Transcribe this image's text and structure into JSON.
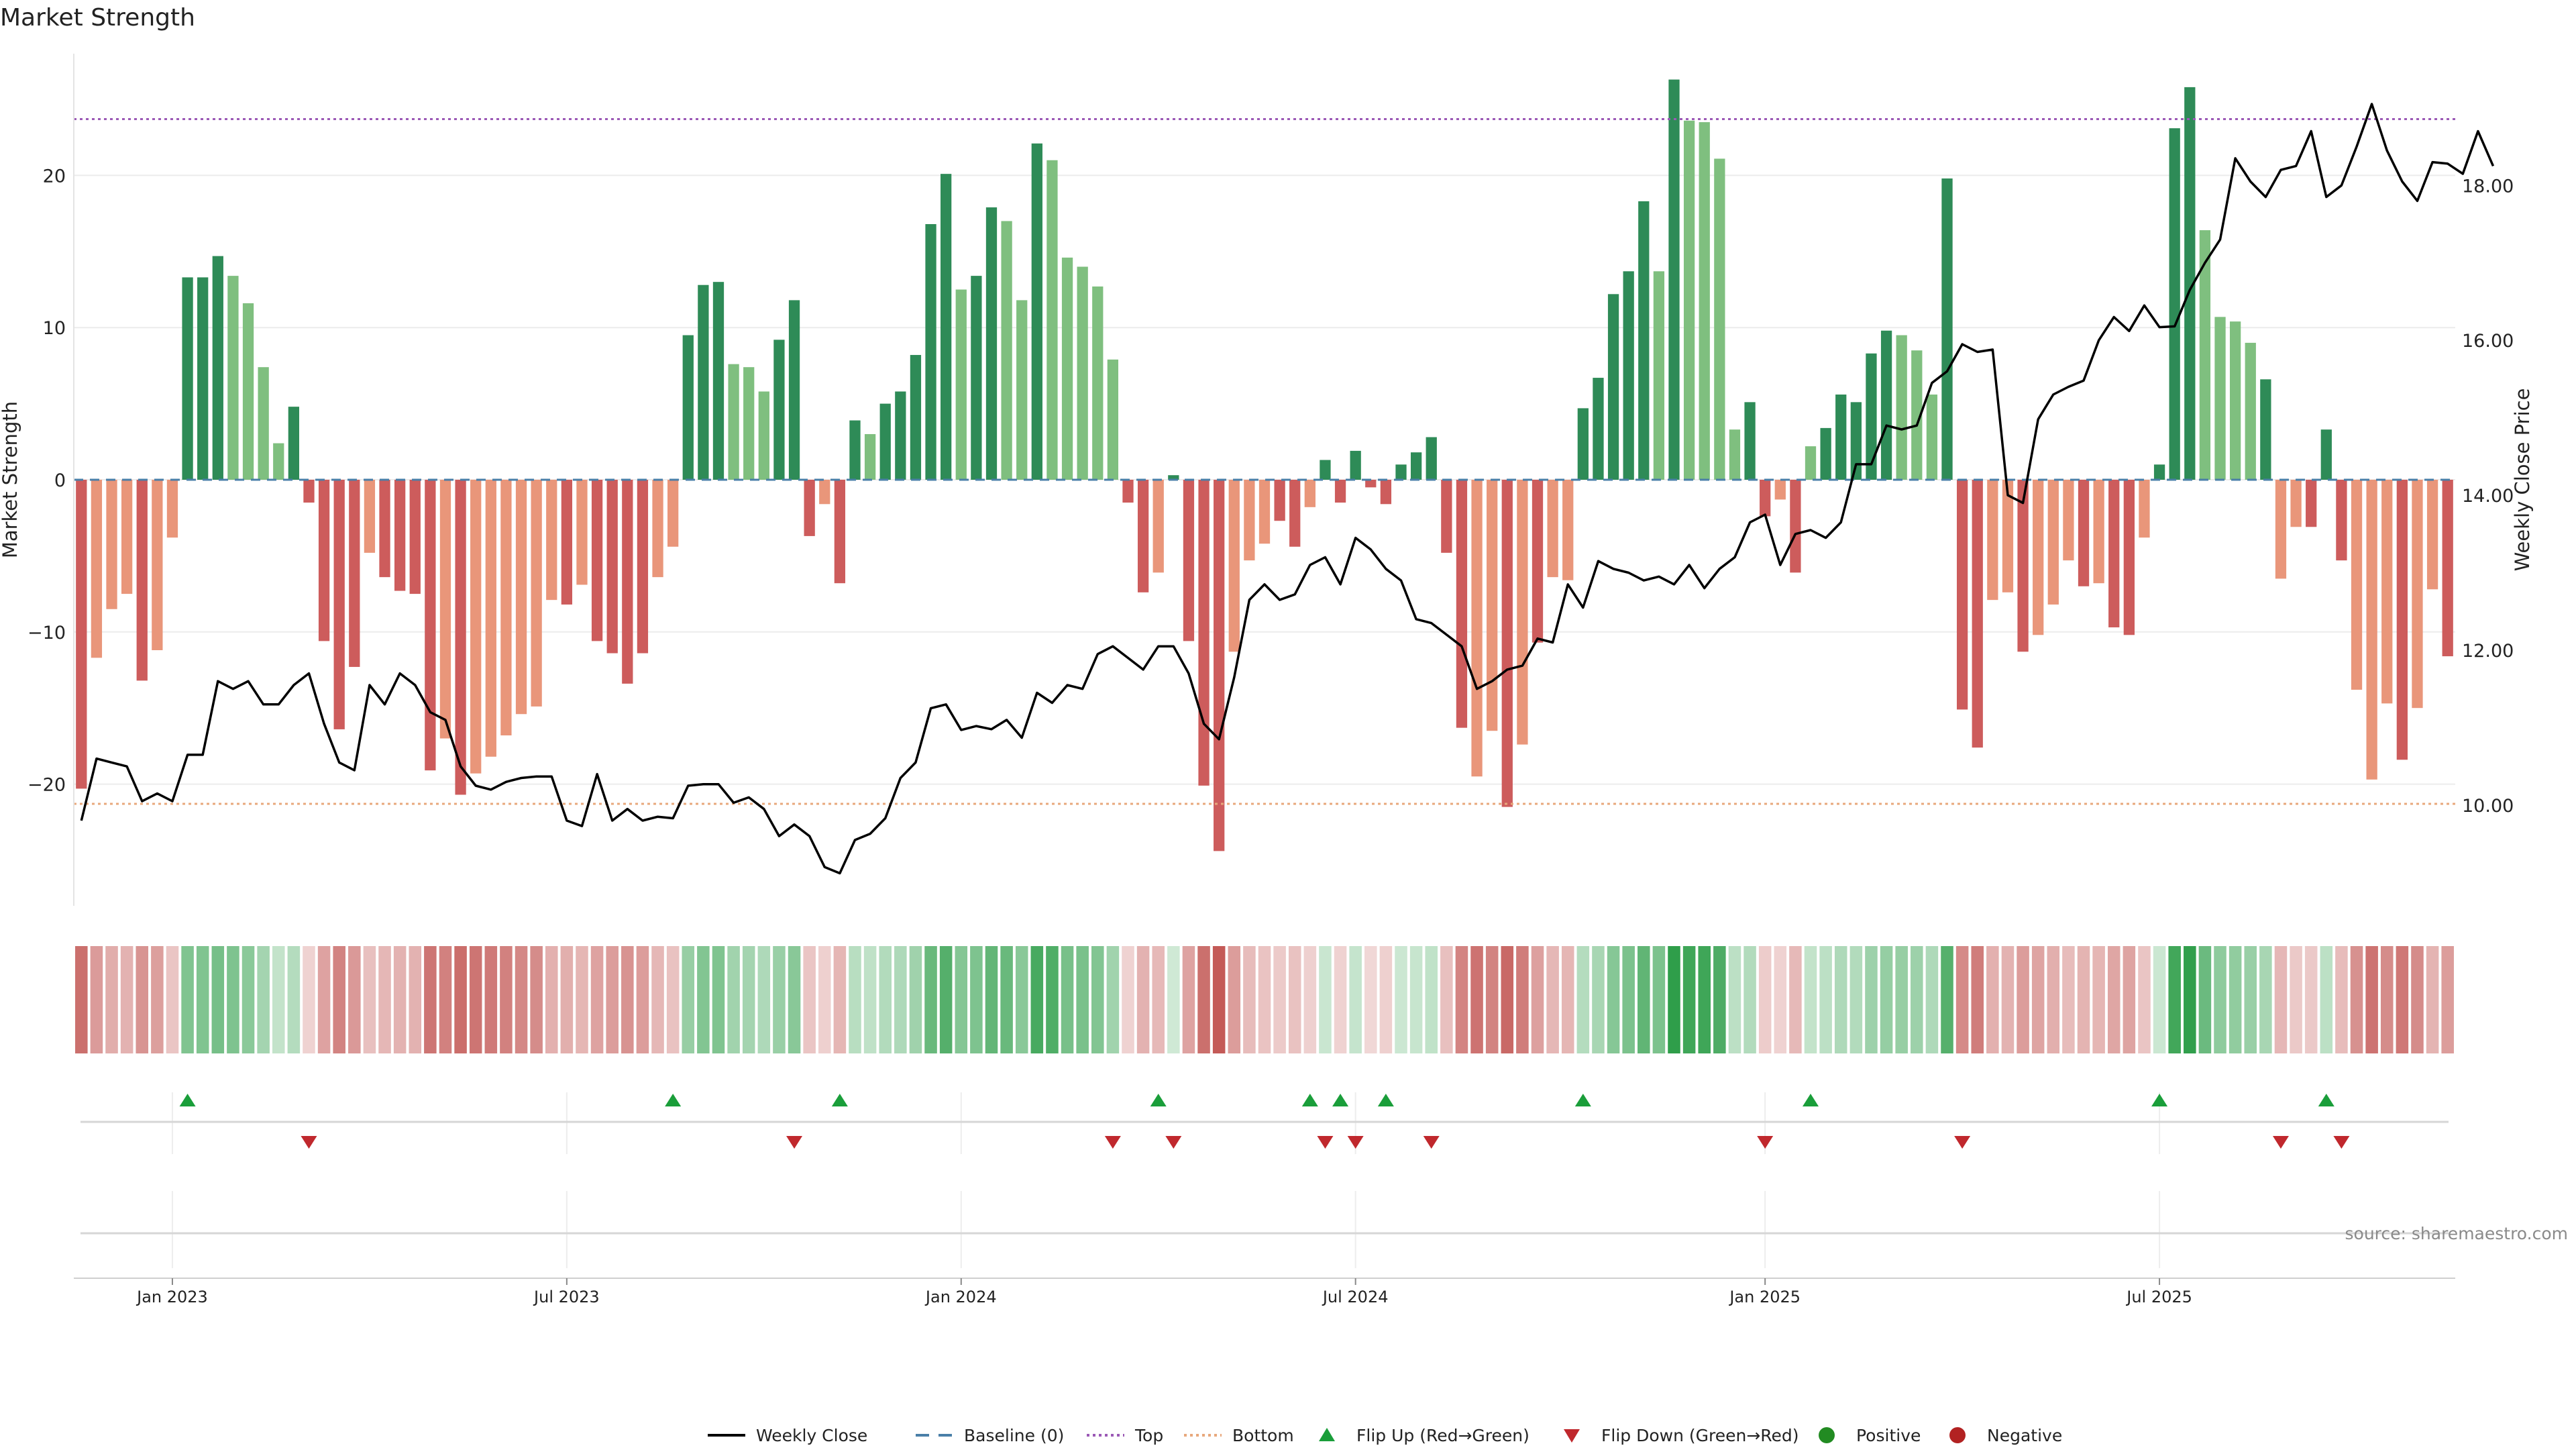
{
  "chart_data": {
    "type": "bar",
    "title": "Market Strength",
    "ylabel": "Market Strength",
    "y2label": "Weekly Close Price",
    "ylim": [
      -28,
      28
    ],
    "y2lim": [
      8.7,
      19.7
    ],
    "yticks": [
      20,
      10,
      0,
      -10,
      -20
    ],
    "ytick_labels": [
      "20",
      "10",
      "0",
      "−10",
      "−20"
    ],
    "y2ticks": [
      18,
      16,
      14,
      12,
      10
    ],
    "y2tick_labels": [
      "18.00",
      "16.00",
      "14.00",
      "12.00",
      "10.00"
    ],
    "x_start": "2022-11-21",
    "x_end": "2025-11-17",
    "xtick_dates": [
      "2023-01-02",
      "2023-07-03",
      "2024-01-01",
      "2024-07-01",
      "2025-01-06",
      "2025-07-07"
    ],
    "xtick_labels": [
      "Jan 2023",
      "Jul 2023",
      "Jan 2024",
      "Jul 2024",
      "Jan 2025",
      "Jul 2025"
    ],
    "top_level": 23.7,
    "bottom_level": -21.3,
    "source": "source: sharemaestro.com",
    "legend_position": "bottom-center",
    "legend": [
      {
        "label": "Weekly Close",
        "kind": "line"
      },
      {
        "label": "Baseline (0)",
        "kind": "dashed"
      },
      {
        "label": "Top",
        "kind": "dotted-purple"
      },
      {
        "label": "Bottom",
        "kind": "dotted-orange"
      },
      {
        "label": "Flip Up (Red→Green)",
        "kind": "triangle-up"
      },
      {
        "label": "Flip Down (Green→Red)",
        "kind": "triangle-down"
      },
      {
        "label": "Positive",
        "kind": "dot-green"
      },
      {
        "label": "Negative",
        "kind": "dot-red"
      }
    ],
    "colors": {
      "strong_green": "#2e8b57",
      "light_green": "#7fbf7f",
      "strong_red": "#cd5c5c",
      "light_red": "#e9967a",
      "line": "#000000",
      "baseline": "#4a7fa8",
      "top": "#9b59b6",
      "bottom": "#e8a87c",
      "flip_up": "#1a9e3a",
      "flip_down": "#c0282d",
      "positive_dot": "#228b22",
      "negative_dot": "#b22222"
    },
    "series": [
      {
        "name": "Market Strength",
        "values": [
          -20.3,
          -11.7,
          -8.5,
          -7.5,
          -13.2,
          -11.2,
          -3.8,
          13.3,
          13.3,
          14.7,
          13.4,
          11.6,
          7.4,
          2.4,
          4.8,
          -1.5,
          -10.6,
          -16.4,
          -12.3,
          -4.8,
          -6.4,
          -7.3,
          -7.5,
          -19.1,
          -17.0,
          -20.7,
          -19.3,
          -18.2,
          -16.8,
          -15.4,
          -14.9,
          -7.9,
          -8.2,
          -6.9,
          -10.6,
          -11.4,
          -13.4,
          -11.4,
          -6.4,
          -4.4,
          9.5,
          12.8,
          13.0,
          7.6,
          7.4,
          5.8,
          9.2,
          11.8,
          -3.7,
          -1.6,
          -6.8,
          3.9,
          3.0,
          5.0,
          5.8,
          8.2,
          16.8,
          20.1,
          12.5,
          13.4,
          17.9,
          17.0,
          11.8,
          22.1,
          21.0,
          14.6,
          14.0,
          12.7,
          7.9,
          -1.5,
          -7.4,
          -6.1,
          0.3,
          -10.6,
          -20.1,
          -24.4,
          -11.3,
          -5.3,
          -4.2,
          -2.7,
          -4.4,
          -1.8,
          1.3,
          -1.5,
          1.9,
          -0.5,
          -1.6,
          1.0,
          1.8,
          2.8,
          -4.8,
          -16.3,
          -19.5,
          -16.5,
          -21.5,
          -17.4,
          -10.7,
          -6.4,
          -6.6,
          4.7,
          6.7,
          12.2,
          13.7,
          18.3,
          13.7,
          26.3,
          23.6,
          23.5,
          21.1,
          3.3,
          5.1,
          -2.4,
          -1.3,
          -6.1,
          2.2,
          3.4,
          5.6,
          5.1,
          8.3,
          9.8,
          9.5,
          8.5,
          5.6,
          19.8,
          -15.1,
          -17.6,
          -7.9,
          -7.4,
          -11.3,
          -10.2,
          -8.2,
          -5.3,
          -7.0,
          -6.8,
          -9.7,
          -10.2,
          -3.8,
          1.0,
          23.1,
          25.8,
          16.4,
          10.7,
          10.4,
          9.0,
          6.6,
          -6.5,
          -3.1,
          -3.1,
          3.3,
          -5.3,
          -13.8,
          -19.7,
          -14.7,
          -18.4,
          -15.0,
          -7.2,
          -11.6
        ],
        "strength_class": [
          "S",
          "L",
          "L",
          "L",
          "S",
          "L",
          "L",
          "S",
          "S",
          "S",
          "L",
          "L",
          "L",
          "L",
          "S",
          "S",
          "S",
          "S",
          "S",
          "L",
          "S",
          "S",
          "S",
          "S",
          "L",
          "S",
          "L",
          "L",
          "L",
          "L",
          "L",
          "L",
          "S",
          "L",
          "S",
          "S",
          "S",
          "S",
          "L",
          "L",
          "S",
          "S",
          "S",
          "L",
          "L",
          "L",
          "S",
          "S",
          "S",
          "L",
          "S",
          "S",
          "L",
          "S",
          "S",
          "S",
          "S",
          "S",
          "L",
          "S",
          "S",
          "L",
          "L",
          "S",
          "L",
          "L",
          "L",
          "L",
          "L",
          "S",
          "S",
          "L",
          "S",
          "S",
          "S",
          "S",
          "L",
          "L",
          "L",
          "S",
          "S",
          "L",
          "S",
          "S",
          "S",
          "S",
          "S",
          "S",
          "S",
          "S",
          "S",
          "S",
          "L",
          "L",
          "S",
          "L",
          "S",
          "L",
          "L",
          "S",
          "S",
          "S",
          "S",
          "S",
          "L",
          "S",
          "L",
          "L",
          "L",
          "L",
          "S",
          "S",
          "L",
          "S",
          "L",
          "S",
          "S",
          "S",
          "S",
          "S",
          "L",
          "L",
          "L",
          "S",
          "S",
          "S",
          "L",
          "L",
          "S",
          "L",
          "L",
          "L",
          "S",
          "L",
          "S",
          "S",
          "L",
          "S",
          "S",
          "S",
          "L",
          "L",
          "L",
          "L",
          "S",
          "L",
          "L",
          "S",
          "S",
          "S",
          "L",
          "L",
          "L",
          "S",
          "L",
          "L",
          "S"
        ]
      },
      {
        "name": "Weekly Close",
        "values": [
          9.8,
          10.6,
          10.55,
          10.5,
          10.05,
          10.15,
          10.05,
          10.65,
          10.65,
          11.6,
          11.5,
          11.6,
          11.3,
          11.3,
          11.55,
          11.7,
          11.05,
          10.55,
          10.45,
          11.55,
          11.3,
          11.7,
          11.55,
          11.2,
          11.1,
          10.5,
          10.25,
          10.2,
          10.3,
          10.35,
          10.37,
          10.37,
          9.8,
          9.73,
          10.4,
          9.8,
          9.95,
          9.8,
          9.85,
          9.83,
          10.25,
          10.27,
          10.27,
          10.03,
          10.1,
          9.95,
          9.6,
          9.75,
          9.6,
          9.2,
          9.12,
          9.55,
          9.63,
          9.83,
          10.35,
          10.55,
          11.25,
          11.3,
          10.97,
          11.02,
          10.98,
          11.1,
          10.87,
          11.45,
          11.32,
          11.55,
          11.5,
          11.95,
          12.05,
          11.9,
          11.75,
          12.05,
          12.05,
          11.7,
          11.05,
          10.85,
          11.65,
          12.65,
          12.85,
          12.65,
          12.72,
          13.1,
          13.2,
          12.85,
          13.45,
          13.3,
          13.05,
          12.9,
          12.4,
          12.35,
          12.2,
          12.05,
          11.5,
          11.6,
          11.75,
          11.8,
          12.15,
          12.1,
          12.85,
          12.55,
          13.15,
          13.05,
          13.0,
          12.9,
          12.95,
          12.85,
          13.1,
          12.8,
          13.05,
          13.2,
          13.65,
          13.75,
          13.1,
          13.5,
          13.55,
          13.45,
          13.65,
          14.4,
          14.4,
          14.9,
          14.85,
          14.9,
          15.45,
          15.6,
          15.95,
          15.85,
          15.88,
          14.0,
          13.9,
          14.98,
          15.3,
          15.4,
          15.48,
          16.0,
          16.3,
          16.12,
          16.45,
          16.17,
          16.18,
          16.65,
          17.0,
          17.3,
          18.35,
          18.05,
          17.85,
          18.2,
          18.25,
          18.7,
          17.85,
          18.0,
          18.5,
          19.05,
          18.45,
          18.05,
          17.8,
          18.3,
          18.28,
          18.15,
          18.7,
          18.25
        ]
      }
    ],
    "flip_up_indices": [
      7,
      39,
      50,
      71,
      81,
      83,
      86,
      99,
      114,
      137,
      148
    ],
    "flip_down_indices": [
      15,
      47,
      68,
      72,
      82,
      84,
      89,
      111,
      124,
      145,
      149
    ]
  }
}
